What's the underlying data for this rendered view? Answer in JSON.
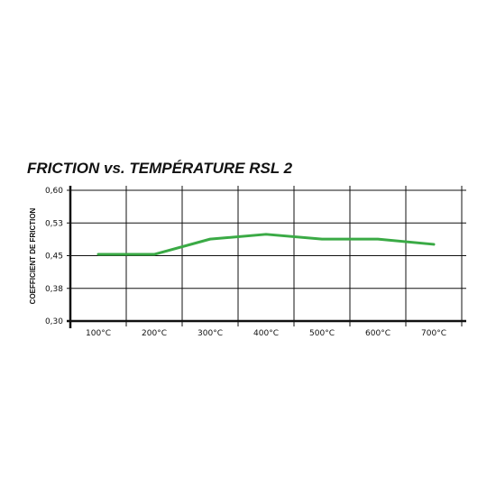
{
  "chart_data": {
    "type": "line",
    "title": "FRICTION vs. TEMPÉRATURE RSL 2",
    "xlabel": "",
    "ylabel": "COEFFICIENT DE FRICTION",
    "categories": [
      "100°C",
      "200°C",
      "300°C",
      "400°C",
      "500°C",
      "600°C",
      "700°C"
    ],
    "series": [
      {
        "values": [
          0.453,
          0.453,
          0.488,
          0.499,
          0.488,
          0.488,
          0.476
        ],
        "color": "#3aaa45"
      }
    ],
    "yticks": [
      "0,60",
      "0,53",
      "0,45",
      "0,38",
      "0,30"
    ],
    "ylim": [
      0.3,
      0.6
    ],
    "grid": true,
    "legend": "none"
  }
}
